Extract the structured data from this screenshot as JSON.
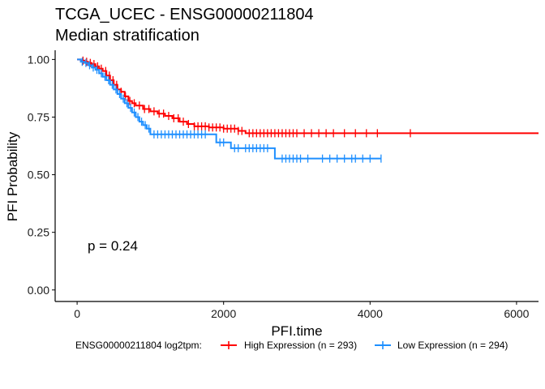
{
  "chart_data": {
    "type": "line",
    "title": "TCGA_UCEC - ENSG00000211804",
    "subtitle": "Median stratification",
    "xlabel": "PFI.time",
    "ylabel": "PFI Probability",
    "xlim": [
      -300,
      6300
    ],
    "ylim": [
      -0.05,
      1.04
    ],
    "xticks": [
      0,
      2000,
      4000,
      6000
    ],
    "xtick_labels": [
      "0",
      "2000",
      "4000",
      "6000"
    ],
    "yticks": [
      0,
      0.25,
      0.5,
      0.75,
      1.0
    ],
    "ytick_labels": [
      "0.00",
      "0.25",
      "0.50",
      "0.75",
      "1.00"
    ],
    "grid": false,
    "legend_position": "bottom",
    "legend_title": "ENSG00000211804 log2tpm:",
    "annotation": "p = 0.24",
    "series": [
      {
        "name": "High Expression (n = 293)",
        "color": "#ff0000",
        "x": [
          0,
          50,
          100,
          150,
          200,
          250,
          300,
          350,
          400,
          450,
          500,
          550,
          600,
          650,
          700,
          750,
          800,
          900,
          1000,
          1100,
          1200,
          1300,
          1400,
          1500,
          1600,
          1800,
          2000,
          2200,
          2300,
          6300
        ],
        "y": [
          1.0,
          0.995,
          0.99,
          0.985,
          0.98,
          0.97,
          0.96,
          0.95,
          0.93,
          0.91,
          0.89,
          0.87,
          0.86,
          0.84,
          0.82,
          0.81,
          0.8,
          0.785,
          0.775,
          0.765,
          0.755,
          0.745,
          0.73,
          0.72,
          0.71,
          0.705,
          0.7,
          0.69,
          0.68,
          0.68
        ],
        "censor_x": [
          80,
          130,
          180,
          230,
          280,
          330,
          390,
          440,
          490,
          540,
          600,
          660,
          720,
          780,
          850,
          920,
          980,
          1050,
          1120,
          1180,
          1250,
          1320,
          1380,
          1450,
          1520,
          1600,
          1650,
          1700,
          1750,
          1800,
          1850,
          1900,
          1950,
          2000,
          2050,
          2100,
          2150,
          2200,
          2250,
          2350,
          2400,
          2450,
          2500,
          2550,
          2600,
          2650,
          2700,
          2750,
          2800,
          2850,
          2900,
          2950,
          3000,
          3100,
          3200,
          3300,
          3400,
          3500,
          3650,
          3800,
          3950,
          4100,
          4550
        ]
      },
      {
        "name": "Low Expression (n = 294)",
        "color": "#1e8fff",
        "x": [
          0,
          50,
          100,
          150,
          200,
          250,
          300,
          350,
          400,
          450,
          500,
          550,
          600,
          650,
          700,
          750,
          800,
          850,
          900,
          950,
          1000,
          1900,
          2100,
          2700,
          4150
        ],
        "y": [
          1.0,
          0.99,
          0.985,
          0.975,
          0.965,
          0.955,
          0.94,
          0.925,
          0.91,
          0.89,
          0.87,
          0.85,
          0.83,
          0.81,
          0.79,
          0.77,
          0.75,
          0.73,
          0.715,
          0.7,
          0.675,
          0.64,
          0.615,
          0.57,
          0.57
        ],
        "censor_x": [
          70,
          120,
          170,
          220,
          270,
          330,
          380,
          430,
          480,
          530,
          580,
          630,
          680,
          730,
          780,
          830,
          880,
          930,
          980,
          1050,
          1100,
          1150,
          1200,
          1250,
          1300,
          1350,
          1400,
          1450,
          1500,
          1550,
          1600,
          1650,
          1700,
          1750,
          1950,
          2000,
          2150,
          2200,
          2300,
          2350,
          2400,
          2450,
          2500,
          2550,
          2600,
          2800,
          2850,
          2900,
          2950,
          3000,
          3050,
          3150,
          3350,
          3450,
          3550,
          3650,
          3750,
          3800,
          3900,
          4000,
          4150
        ]
      }
    ]
  }
}
